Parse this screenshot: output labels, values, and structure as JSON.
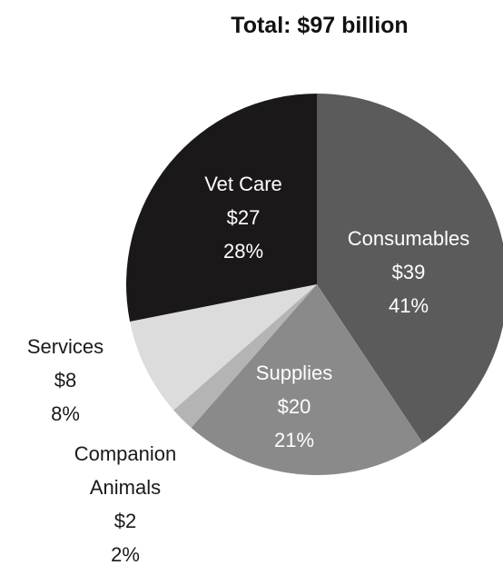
{
  "chart_data": {
    "type": "pie",
    "title": "Total: $97 billion",
    "slices": [
      {
        "name": "Consumables",
        "amount": "$39",
        "percent": "41%",
        "value": 39,
        "color": "#5b5b5b",
        "label_color": "#ffffff"
      },
      {
        "name": "Supplies",
        "amount": "$20",
        "percent": "21%",
        "value": 20,
        "color": "#8a8a8a",
        "label_color": "#ffffff"
      },
      {
        "name": "Companion Animals",
        "amount": "$2",
        "percent": "2%",
        "value": 2,
        "color": "#b4b4b4",
        "label_color": "#1a1a1a"
      },
      {
        "name": "Services",
        "amount": "$8",
        "percent": "8%",
        "value": 8,
        "color": "#dcdcdc",
        "label_color": "#1a1a1a"
      },
      {
        "name": "Vet Care",
        "amount": "$27",
        "percent": "28%",
        "value": 27,
        "color": "#1b1819",
        "label_color": "#ffffff"
      }
    ]
  }
}
